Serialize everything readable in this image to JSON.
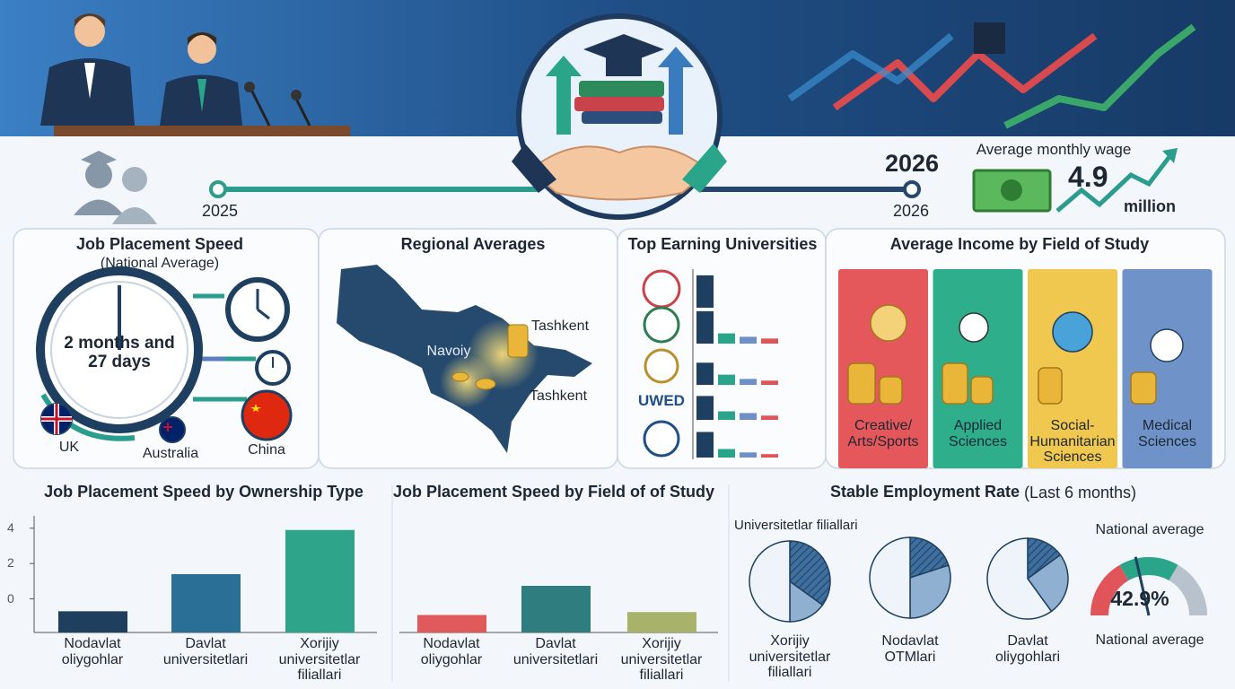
{
  "header": {
    "timeline_start": "2025",
    "timeline_end_large": "2026",
    "timeline_end": "2026",
    "wage_label": "Average monthly wage",
    "wage_value": "4.9",
    "wage_unit": "million"
  },
  "placement": {
    "title": "Job Placement Speed",
    "subtitle": "(National Average)",
    "duration": "2 months and 27 days",
    "countries": [
      "UK",
      "Australia",
      "China"
    ]
  },
  "regional": {
    "title": "Regional Averages",
    "labels": [
      "Tashkent",
      "Navoiy",
      "Tashkent"
    ]
  },
  "income": {
    "title": "Average Income by Field of Study",
    "fields": [
      "Creative/ Arts/Sports",
      "Applied Sciences",
      "Social-Humanitarian Sciences",
      "Medical Sciences"
    ],
    "colors": [
      "#e4575a",
      "#2fae8c",
      "#f0c74f",
      "#6f93c8"
    ]
  },
  "chart_data": [
    {
      "type": "bar",
      "title": "Top Earning Universities",
      "categories": [
        null,
        null,
        null,
        "UWED",
        null
      ],
      "series": [
        {
          "color": "#1f3f60",
          "values": [
            38,
            38,
            26,
            28,
            30
          ]
        },
        {
          "color": "#2aa58a",
          "values": [
            0,
            12,
            12,
            10,
            10
          ]
        },
        {
          "color": "#6f8fc8",
          "values": [
            0,
            8,
            7,
            8,
            6
          ]
        },
        {
          "color": "#e0555a",
          "values": [
            0,
            6,
            5,
            5,
            4
          ]
        }
      ],
      "ylim": [
        0,
        40
      ]
    },
    {
      "type": "bar",
      "title": "Job Placement Speed by Ownership Type",
      "categories": [
        "Nodavlat oliygohlar",
        "Davlat universitetlari",
        "Xorijiy universitetlar filiallari"
      ],
      "values": [
        -0.7,
        1.4,
        3.9
      ],
      "colors": [
        "#1e3f5e",
        "#2a6f96",
        "#2ea48a"
      ],
      "ylim": [
        -1.9,
        4.7
      ],
      "yticks": [
        0,
        2,
        4
      ]
    },
    {
      "type": "bar",
      "title": "Job Placement Speed by Field of of Study",
      "categories": [
        "Nodavlat oliygohlar",
        "Davlat universitetlari",
        "Xorijiy universitetlar filiallari"
      ],
      "values": [
        0.6,
        1.6,
        0.7
      ],
      "colors": [
        "#e05a5c",
        "#2f7d7e",
        "#a8b26a"
      ],
      "ylim": [
        0,
        4
      ]
    },
    {
      "type": "pie",
      "title": "Stable Employment Rate",
      "subtitle": "(Last 6 months)",
      "colors": [
        "#3f6f9f",
        "#8fb0d0",
        "#eef4fa"
      ],
      "pies": [
        {
          "top_label": "Universitetlar filiallari",
          "label": "Xorijiy universitetlar filiallari",
          "values": [
            35,
            15,
            50
          ]
        },
        {
          "label": "Nodavlat OTMlari",
          "values": [
            20,
            30,
            50
          ]
        },
        {
          "label": "Davlat oliygohlari",
          "values": [
            15,
            25,
            60
          ]
        }
      ],
      "gauge": {
        "value": 42.9,
        "value_label": "42.9%",
        "lim": [
          0,
          100
        ],
        "labels": [
          "National average",
          "National average"
        ],
        "colors": [
          "#e0555a",
          "#2aa58a",
          "#b8c2cc"
        ]
      }
    }
  ]
}
